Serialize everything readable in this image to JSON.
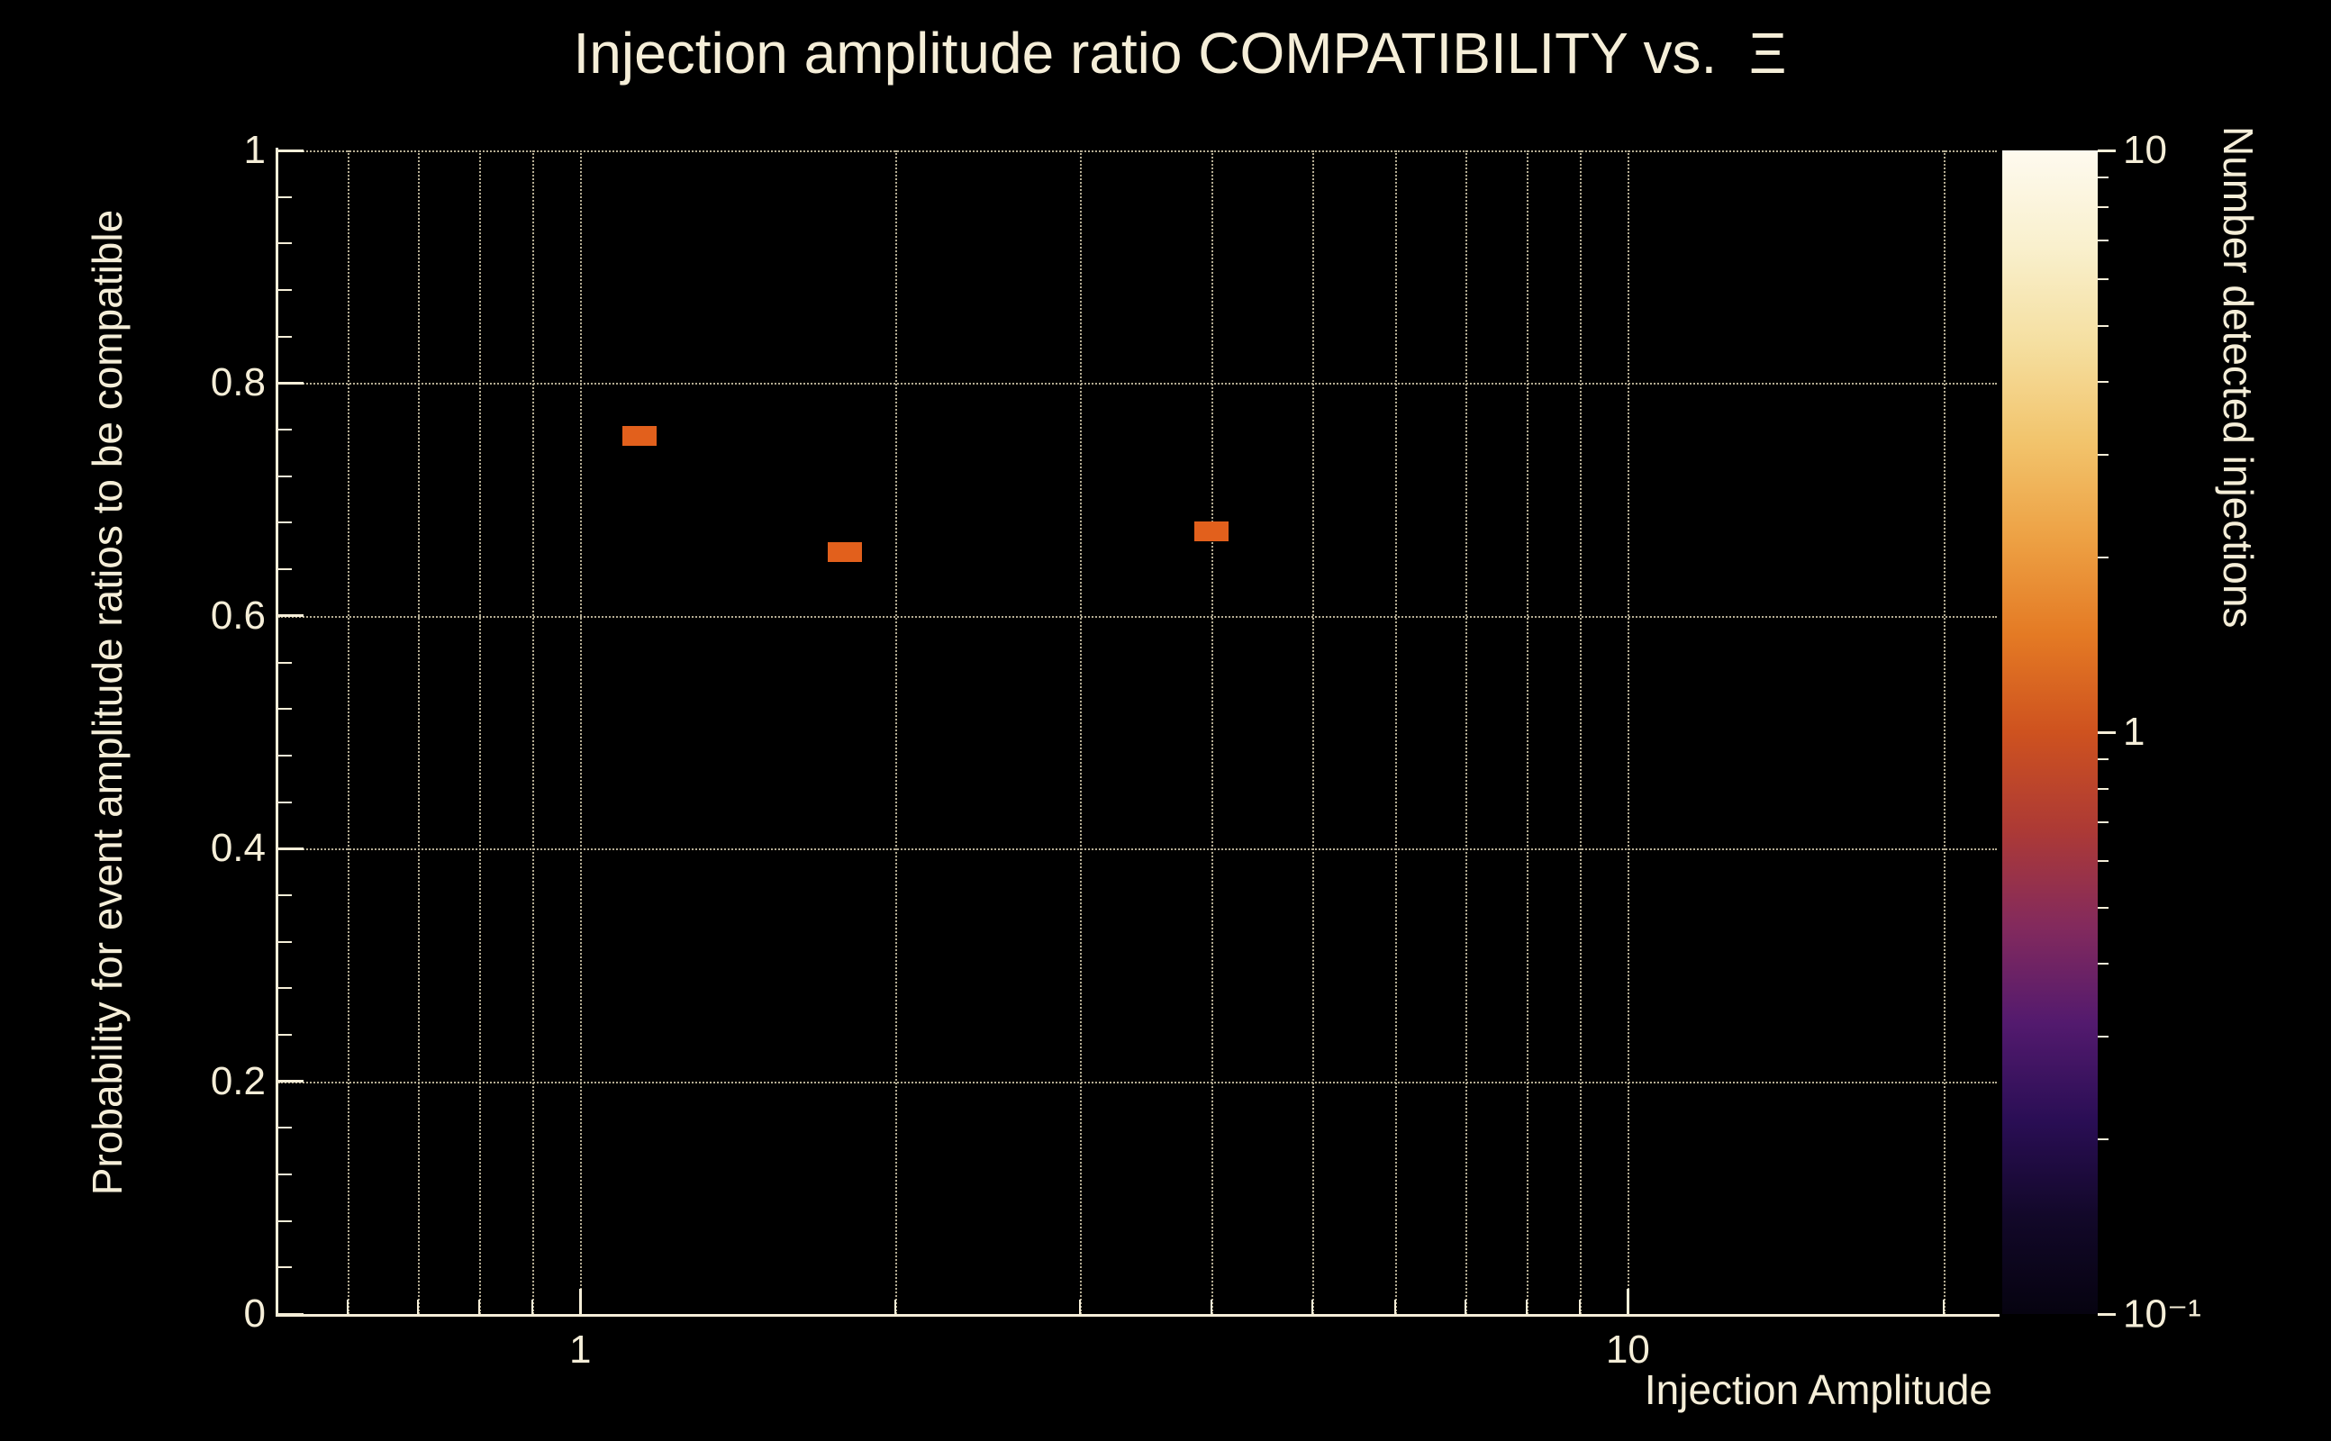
{
  "colors": {
    "background": "#000000",
    "foreground": "#f5eed8",
    "grid": "#b5ad93",
    "marker": "#e2601c"
  },
  "chart_data": {
    "type": "heatmap",
    "title": "Injection amplitude ratio COMPATIBILITY vs.  Ξ",
    "xlabel": "Injection Amplitude",
    "ylabel": "Probability for event amplitude ratios to be compatible",
    "zlabel": "Number detected injections",
    "x_scale": "log",
    "x_range": [
      0.515,
      22.5
    ],
    "y_scale": "linear",
    "y_range": [
      0,
      1
    ],
    "z_scale": "log",
    "z_range": [
      0.1,
      10
    ],
    "grid": true,
    "grid_x": [
      0.6,
      0.7,
      0.8,
      0.9,
      1,
      2,
      3,
      4,
      5,
      6,
      7,
      8,
      9,
      10,
      20
    ],
    "grid_y": [
      0.2,
      0.4,
      0.6,
      0.8,
      1
    ],
    "x_major_ticks": [
      {
        "value": 1,
        "label": "1"
      },
      {
        "value": 10,
        "label": "10"
      }
    ],
    "x_minor_ticks": [
      0.6,
      0.7,
      0.8,
      0.9,
      2,
      3,
      4,
      5,
      6,
      7,
      8,
      9,
      20
    ],
    "y_major_ticks": [
      {
        "value": 0,
        "label": "0"
      },
      {
        "value": 0.2,
        "label": "0.2"
      },
      {
        "value": 0.4,
        "label": "0.4"
      },
      {
        "value": 0.6,
        "label": "0.6"
      },
      {
        "value": 0.8,
        "label": "0.8"
      },
      {
        "value": 1,
        "label": "1"
      }
    ],
    "y_minor_step": 0.04,
    "points": [
      {
        "x": 1.14,
        "y": 0.755,
        "value": 2
      },
      {
        "x": 1.79,
        "y": 0.655,
        "value": 2
      },
      {
        "x": 4.0,
        "y": 0.673,
        "value": 2
      }
    ],
    "bin_size_px": {
      "w": 38,
      "h": 22
    },
    "colorbar": {
      "ticks": [
        {
          "value": 10,
          "label": "10"
        },
        {
          "value": 1,
          "label": "1"
        },
        {
          "value": 0.1,
          "label": "10⁻¹"
        }
      ],
      "minor_ticks": [
        9,
        8,
        7,
        6,
        5,
        4,
        3,
        2,
        0.9,
        0.8,
        0.7,
        0.6,
        0.5,
        0.4,
        0.3,
        0.2
      ],
      "gradient_top_to_bottom": [
        "#fefaef",
        "#f9f0cd",
        "#f5dfa0",
        "#f2c46c",
        "#eda144",
        "#e47a24",
        "#ce521f",
        "#ad3a35",
        "#832a5d",
        "#531a6e",
        "#2a0e55",
        "#120829",
        "#060310"
      ]
    }
  }
}
